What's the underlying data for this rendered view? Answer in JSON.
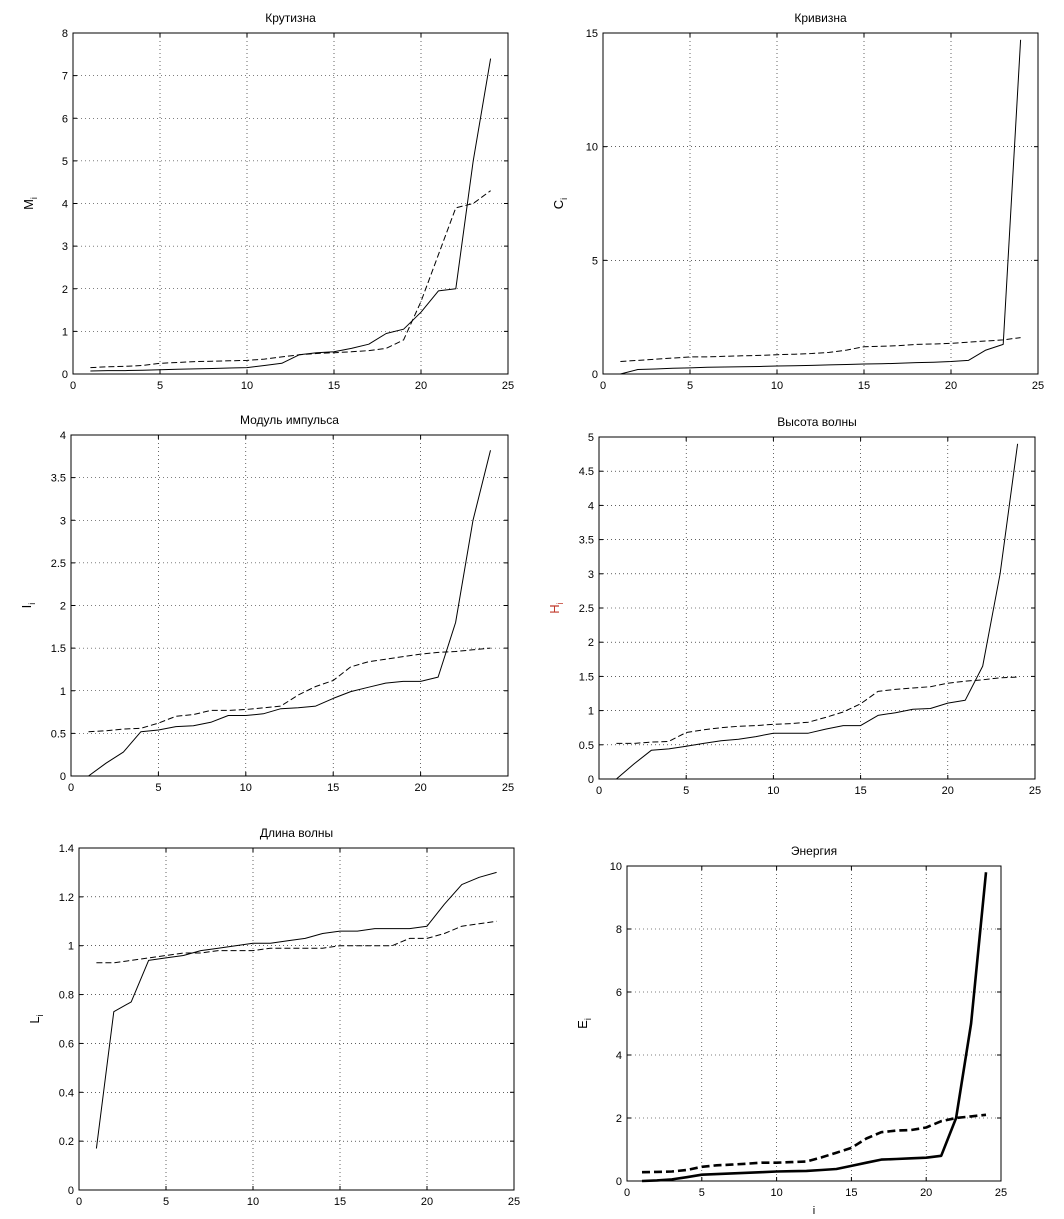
{
  "chart_data": [
    {
      "type": "line",
      "title": "Крутизна",
      "ylabel": "M",
      "ylabel_sub": "i",
      "ylabel_color": "#000000",
      "xlabel": "",
      "xlim": [
        0,
        25
      ],
      "ylim": [
        0,
        8
      ],
      "xticks": [
        0,
        5,
        10,
        15,
        20,
        25
      ],
      "yticks": [
        0,
        1,
        2,
        3,
        4,
        5,
        6,
        7,
        8
      ],
      "grid": true,
      "series": [
        {
          "style": "solid",
          "x": [
            1,
            2,
            3,
            4,
            5,
            6,
            7,
            8,
            9,
            10,
            11,
            12,
            13,
            14,
            15,
            16,
            17,
            18,
            19,
            20,
            21,
            22,
            23,
            24
          ],
          "y": [
            0.07,
            0.08,
            0.08,
            0.09,
            0.1,
            0.11,
            0.12,
            0.13,
            0.14,
            0.15,
            0.2,
            0.25,
            0.45,
            0.5,
            0.52,
            0.6,
            0.7,
            0.95,
            1.05,
            1.45,
            1.95,
            2.0,
            5.0,
            7.4
          ]
        },
        {
          "style": "dashed",
          "x": [
            1,
            2,
            3,
            4,
            5,
            6,
            7,
            8,
            9,
            10,
            11,
            12,
            13,
            14,
            15,
            16,
            17,
            18,
            19,
            20,
            21,
            22,
            23,
            24
          ],
          "y": [
            0.15,
            0.17,
            0.18,
            0.2,
            0.25,
            0.27,
            0.29,
            0.3,
            0.31,
            0.32,
            0.35,
            0.4,
            0.45,
            0.48,
            0.5,
            0.52,
            0.55,
            0.6,
            0.8,
            1.7,
            2.8,
            3.9,
            4.0,
            4.3
          ]
        }
      ]
    },
    {
      "type": "line",
      "title": "Кривизна",
      "ylabel": "C",
      "ylabel_sub": "i",
      "ylabel_color": "#000000",
      "xlabel": "",
      "xlim": [
        0,
        25
      ],
      "ylim": [
        0,
        15
      ],
      "xticks": [
        0,
        5,
        10,
        15,
        20,
        25
      ],
      "yticks": [
        0,
        5,
        10,
        15
      ],
      "grid": true,
      "series": [
        {
          "style": "solid",
          "x": [
            1,
            2,
            3,
            4,
            5,
            6,
            7,
            8,
            9,
            10,
            11,
            12,
            13,
            14,
            15,
            16,
            17,
            18,
            19,
            20,
            21,
            22,
            23,
            24
          ],
          "y": [
            0.0,
            0.2,
            0.22,
            0.25,
            0.27,
            0.3,
            0.31,
            0.32,
            0.33,
            0.35,
            0.36,
            0.38,
            0.4,
            0.42,
            0.44,
            0.45,
            0.47,
            0.5,
            0.52,
            0.55,
            0.6,
            1.05,
            1.3,
            14.7
          ]
        },
        {
          "style": "dashed",
          "x": [
            1,
            2,
            3,
            4,
            5,
            6,
            7,
            8,
            9,
            10,
            11,
            12,
            13,
            14,
            15,
            16,
            17,
            18,
            19,
            20,
            21,
            22,
            23,
            24
          ],
          "y": [
            0.55,
            0.6,
            0.65,
            0.7,
            0.75,
            0.75,
            0.78,
            0.8,
            0.82,
            0.85,
            0.87,
            0.9,
            0.95,
            1.05,
            1.2,
            1.22,
            1.25,
            1.3,
            1.32,
            1.35,
            1.4,
            1.45,
            1.5,
            1.6
          ]
        }
      ]
    },
    {
      "type": "line",
      "title": "Модуль импульса",
      "ylabel": "I",
      "ylabel_sub": "i",
      "ylabel_color": "#000000",
      "xlabel": "",
      "xlim": [
        0,
        25
      ],
      "ylim": [
        0,
        4
      ],
      "xticks": [
        0,
        5,
        10,
        15,
        20,
        25
      ],
      "yticks": [
        0,
        0.5,
        1,
        1.5,
        2,
        2.5,
        3,
        3.5,
        4
      ],
      "grid": true,
      "series": [
        {
          "style": "solid",
          "x": [
            1,
            2,
            3,
            4,
            5,
            6,
            7,
            8,
            9,
            10,
            11,
            12,
            13,
            14,
            15,
            16,
            17,
            18,
            19,
            20,
            21,
            22,
            23,
            24
          ],
          "y": [
            0.0,
            0.15,
            0.28,
            0.52,
            0.54,
            0.58,
            0.59,
            0.63,
            0.71,
            0.71,
            0.73,
            0.79,
            0.8,
            0.82,
            0.91,
            0.99,
            1.04,
            1.09,
            1.11,
            1.11,
            1.16,
            1.8,
            3.0,
            3.82
          ]
        },
        {
          "style": "dashed",
          "x": [
            1,
            2,
            3,
            4,
            5,
            6,
            7,
            8,
            9,
            10,
            11,
            12,
            13,
            14,
            15,
            16,
            17,
            18,
            19,
            20,
            21,
            22,
            23,
            24
          ],
          "y": [
            0.52,
            0.53,
            0.55,
            0.56,
            0.62,
            0.7,
            0.72,
            0.77,
            0.77,
            0.78,
            0.8,
            0.82,
            0.95,
            1.05,
            1.12,
            1.28,
            1.34,
            1.37,
            1.4,
            1.43,
            1.45,
            1.46,
            1.48,
            1.5
          ]
        }
      ]
    },
    {
      "type": "line",
      "title": "Высота волны",
      "ylabel": "H",
      "ylabel_sub": "i",
      "ylabel_color": "#c0392b",
      "xlabel": "",
      "xlim": [
        0,
        25
      ],
      "ylim": [
        0,
        5
      ],
      "xticks": [
        0,
        5,
        10,
        15,
        20,
        25
      ],
      "yticks": [
        0,
        0.5,
        1,
        1.5,
        2,
        2.5,
        3,
        3.5,
        4,
        4.5,
        5
      ],
      "grid": true,
      "series": [
        {
          "style": "solid",
          "x": [
            1,
            2,
            3,
            4,
            5,
            6,
            7,
            8,
            9,
            10,
            11,
            12,
            13,
            14,
            15,
            16,
            17,
            18,
            19,
            20,
            21,
            22,
            23,
            24
          ],
          "y": [
            0.0,
            0.22,
            0.42,
            0.44,
            0.48,
            0.52,
            0.56,
            0.58,
            0.62,
            0.67,
            0.67,
            0.67,
            0.73,
            0.78,
            0.78,
            0.93,
            0.97,
            1.02,
            1.03,
            1.11,
            1.15,
            1.65,
            3.0,
            4.9
          ]
        },
        {
          "style": "dashed",
          "x": [
            1,
            2,
            3,
            4,
            5,
            6,
            7,
            8,
            9,
            10,
            11,
            12,
            13,
            14,
            15,
            16,
            17,
            18,
            19,
            20,
            21,
            22,
            23,
            24
          ],
          "y": [
            0.52,
            0.52,
            0.54,
            0.55,
            0.68,
            0.72,
            0.75,
            0.77,
            0.78,
            0.8,
            0.81,
            0.83,
            0.9,
            0.98,
            1.1,
            1.28,
            1.31,
            1.33,
            1.35,
            1.4,
            1.43,
            1.45,
            1.48,
            1.49
          ]
        }
      ]
    },
    {
      "type": "line",
      "title": "Длина волны",
      "ylabel": "L",
      "ylabel_sub": "i",
      "ylabel_color": "#000000",
      "xlabel": "",
      "xlim": [
        0,
        25
      ],
      "ylim": [
        0,
        1.4
      ],
      "xticks": [
        0,
        5,
        10,
        15,
        20,
        25
      ],
      "yticks": [
        0,
        0.2,
        0.4,
        0.6,
        0.8,
        1,
        1.2,
        1.4
      ],
      "grid": true,
      "series": [
        {
          "style": "solid",
          "x": [
            1,
            2,
            3,
            4,
            5,
            6,
            7,
            8,
            9,
            10,
            11,
            12,
            13,
            14,
            15,
            16,
            17,
            18,
            19,
            20,
            21,
            22,
            23,
            24
          ],
          "y": [
            0.17,
            0.73,
            0.77,
            0.94,
            0.95,
            0.96,
            0.98,
            0.99,
            1.0,
            1.01,
            1.01,
            1.02,
            1.03,
            1.05,
            1.06,
            1.06,
            1.07,
            1.07,
            1.07,
            1.08,
            1.17,
            1.25,
            1.28,
            1.3
          ]
        },
        {
          "style": "dashed",
          "x": [
            1,
            2,
            3,
            4,
            5,
            6,
            7,
            8,
            9,
            10,
            11,
            12,
            13,
            14,
            15,
            16,
            17,
            18,
            19,
            20,
            21,
            22,
            23,
            24
          ],
          "y": [
            0.93,
            0.93,
            0.94,
            0.95,
            0.96,
            0.97,
            0.97,
            0.98,
            0.98,
            0.98,
            0.99,
            0.99,
            0.99,
            0.99,
            1.0,
            1.0,
            1.0,
            1.0,
            1.03,
            1.03,
            1.05,
            1.08,
            1.09,
            1.1
          ]
        }
      ]
    },
    {
      "type": "line",
      "title": "Энергия",
      "ylabel": "E",
      "ylabel_sub": "i",
      "ylabel_color": "#000000",
      "xlabel": "i",
      "xlim": [
        0,
        25
      ],
      "ylim": [
        0,
        10
      ],
      "xticks": [
        0,
        5,
        10,
        15,
        20,
        25
      ],
      "yticks": [
        0,
        2,
        4,
        6,
        8,
        10
      ],
      "grid": true,
      "bold": true,
      "series": [
        {
          "style": "solid",
          "x": [
            1,
            2,
            3,
            4,
            5,
            6,
            7,
            8,
            9,
            10,
            11,
            12,
            13,
            14,
            15,
            16,
            17,
            18,
            19,
            20,
            21,
            22,
            23,
            24
          ],
          "y": [
            0.0,
            0.02,
            0.05,
            0.12,
            0.2,
            0.22,
            0.24,
            0.26,
            0.28,
            0.3,
            0.31,
            0.32,
            0.35,
            0.38,
            0.48,
            0.58,
            0.68,
            0.7,
            0.72,
            0.74,
            0.8,
            2.0,
            5.0,
            9.8
          ]
        },
        {
          "style": "dashed",
          "x": [
            1,
            2,
            3,
            4,
            5,
            6,
            7,
            8,
            9,
            10,
            11,
            12,
            13,
            14,
            15,
            16,
            17,
            18,
            19,
            20,
            21,
            22,
            23,
            24
          ],
          "y": [
            0.28,
            0.29,
            0.3,
            0.35,
            0.45,
            0.5,
            0.52,
            0.55,
            0.58,
            0.58,
            0.6,
            0.62,
            0.75,
            0.9,
            1.05,
            1.35,
            1.55,
            1.6,
            1.62,
            1.7,
            1.9,
            2.0,
            2.05,
            2.1
          ]
        }
      ]
    }
  ]
}
